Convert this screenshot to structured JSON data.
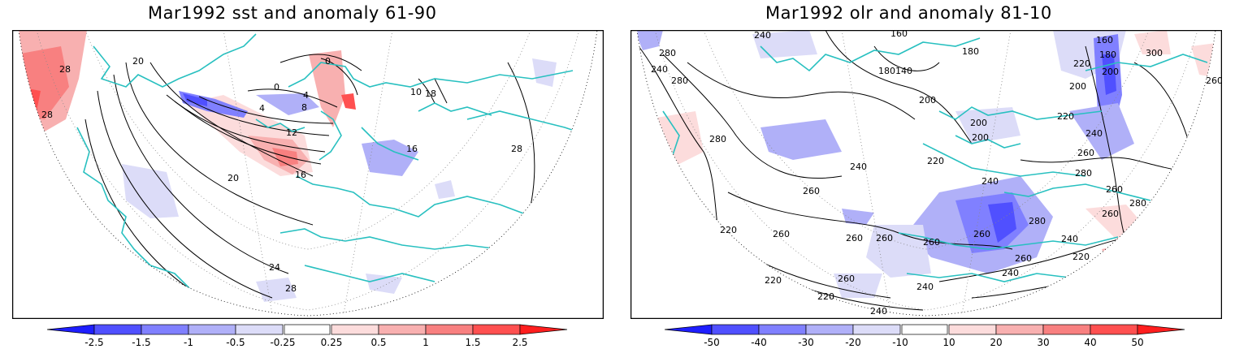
{
  "panels": [
    {
      "title": "Mar1992 sst and anomaly 61-90",
      "contour_labels": [
        "28",
        "28",
        "20",
        "0",
        "0",
        "4",
        "4",
        "8",
        "12",
        "16",
        "16",
        "20",
        "24",
        "28",
        "28",
        "10",
        "18"
      ],
      "colorbar": {
        "labels": [
          "-2.5",
          "-1.5",
          "-1",
          "-0.5",
          "-0.25",
          "0.25",
          "0.5",
          "1",
          "1.5",
          "2.5"
        ],
        "colors": [
          "#1e1eff",
          "#5050ff",
          "#8080ff",
          "#b0b0f8",
          "#dcdcf8",
          "#ffffff",
          "#fcdcdc",
          "#f8b0b0",
          "#f88080",
          "#ff5050",
          "#ff1e1e"
        ]
      }
    },
    {
      "title": "Mar1992 olr and anomaly 81-10",
      "contour_labels": [
        "240",
        "280",
        "240",
        "280",
        "160",
        "180",
        "140",
        "180",
        "160",
        "220",
        "180",
        "200",
        "300",
        "260",
        "200",
        "200",
        "200",
        "220",
        "200",
        "240",
        "280",
        "240",
        "260",
        "220",
        "280",
        "260",
        "240",
        "260",
        "280",
        "220",
        "260",
        "260",
        "260",
        "260",
        "260",
        "260",
        "280",
        "240",
        "260",
        "240",
        "220",
        "260",
        "220",
        "220",
        "240",
        "240"
      ],
      "colorbar": {
        "labels": [
          "-50",
          "-40",
          "-30",
          "-20",
          "-10",
          "10",
          "20",
          "30",
          "40",
          "50"
        ],
        "colors": [
          "#1e1eff",
          "#5050ff",
          "#8080ff",
          "#b0b0f8",
          "#dcdcf8",
          "#ffffff",
          "#fcdcdc",
          "#f8b0b0",
          "#f88080",
          "#ff5050",
          "#ff1e1e"
        ]
      }
    }
  ],
  "colors": {
    "coastline": "#28c0c0",
    "contour": "#000000",
    "frame": "#000000"
  }
}
